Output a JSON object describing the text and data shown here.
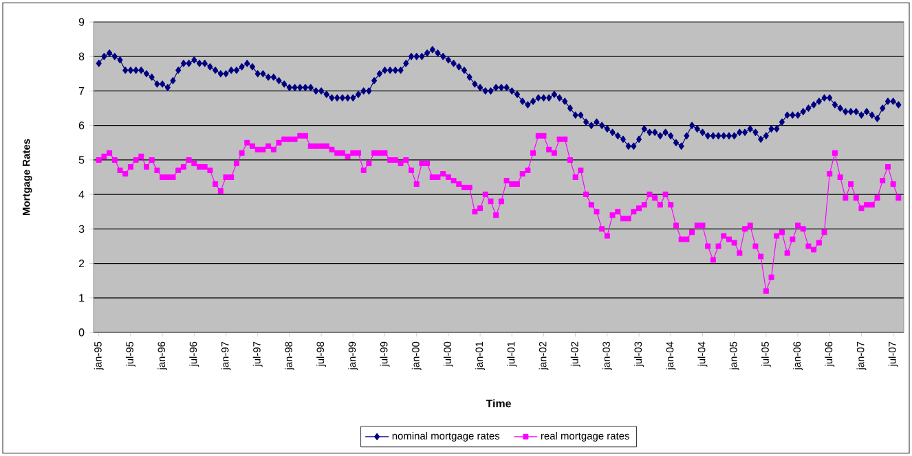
{
  "chart_data": {
    "type": "line",
    "xlabel": "Time",
    "ylabel": "Mortgage Rates",
    "categories": [
      "jan-95",
      null,
      null,
      null,
      null,
      null,
      "jul-95",
      null,
      null,
      null,
      null,
      null,
      "jan-96",
      null,
      null,
      null,
      null,
      null,
      "jul-96",
      null,
      null,
      null,
      null,
      null,
      "jan-97",
      null,
      null,
      null,
      null,
      null,
      "jul-97",
      null,
      null,
      null,
      null,
      null,
      "jan-98",
      null,
      null,
      null,
      null,
      null,
      "jul-98",
      null,
      null,
      null,
      null,
      null,
      "jan-99",
      null,
      null,
      null,
      null,
      null,
      "jul-99",
      null,
      null,
      null,
      null,
      null,
      "jan-00",
      null,
      null,
      null,
      null,
      null,
      "jul-00",
      null,
      null,
      null,
      null,
      null,
      "jan-01",
      null,
      null,
      null,
      null,
      null,
      "jul-01",
      null,
      null,
      null,
      null,
      null,
      "jan-02",
      null,
      null,
      null,
      null,
      null,
      "jul-02",
      null,
      null,
      null,
      null,
      null,
      "jan-03",
      null,
      null,
      null,
      null,
      null,
      "jul-03",
      null,
      null,
      null,
      null,
      null,
      "jan-04",
      null,
      null,
      null,
      null,
      null,
      "jul-04",
      null,
      null,
      null,
      null,
      null,
      "jan-05",
      null,
      null,
      null,
      null,
      null,
      "jul-05",
      null,
      null,
      null,
      null,
      null,
      "jan-06",
      null,
      null,
      null,
      null,
      null,
      "jul-06",
      null,
      null,
      null,
      null,
      null,
      "jan-07",
      null,
      null,
      null,
      null,
      null,
      "jul-07",
      null
    ],
    "series": [
      {
        "name": "nominal mortgage rates",
        "color": "#000080",
        "marker": "diamond",
        "values": [
          7.8,
          8.0,
          8.1,
          8.0,
          7.9,
          7.6,
          7.6,
          7.6,
          7.6,
          7.5,
          7.4,
          7.2,
          7.2,
          7.1,
          7.3,
          7.6,
          7.8,
          7.8,
          7.9,
          7.8,
          7.8,
          7.7,
          7.6,
          7.5,
          7.5,
          7.6,
          7.6,
          7.7,
          7.8,
          7.7,
          7.5,
          7.5,
          7.4,
          7.4,
          7.3,
          7.2,
          7.1,
          7.1,
          7.1,
          7.1,
          7.1,
          7.0,
          7.0,
          6.9,
          6.8,
          6.8,
          6.8,
          6.8,
          6.8,
          6.9,
          7.0,
          7.0,
          7.3,
          7.5,
          7.6,
          7.6,
          7.6,
          7.6,
          7.8,
          8.0,
          8.0,
          8.0,
          8.1,
          8.2,
          8.1,
          8.0,
          7.9,
          7.8,
          7.7,
          7.6,
          7.4,
          7.2,
          7.1,
          7.0,
          7.0,
          7.1,
          7.1,
          7.1,
          7.0,
          6.9,
          6.7,
          6.6,
          6.7,
          6.8,
          6.8,
          6.8,
          6.9,
          6.8,
          6.7,
          6.5,
          6.3,
          6.3,
          6.1,
          6.0,
          6.1,
          6.0,
          5.9,
          5.8,
          5.7,
          5.6,
          5.4,
          5.4,
          5.6,
          5.9,
          5.8,
          5.8,
          5.7,
          5.8,
          5.7,
          5.5,
          5.4,
          5.7,
          6.0,
          5.9,
          5.8,
          5.7,
          5.7,
          5.7,
          5.7,
          5.7,
          5.7,
          5.8,
          5.8,
          5.9,
          5.8,
          5.6,
          5.7,
          5.9,
          5.9,
          6.1,
          6.3,
          6.3,
          6.3,
          6.4,
          6.5,
          6.6,
          6.7,
          6.8,
          6.8,
          6.6,
          6.5,
          6.4,
          6.4,
          6.4,
          6.3,
          6.4,
          6.3,
          6.2,
          6.5,
          6.7,
          6.7,
          6.6
        ]
      },
      {
        "name": "real mortgage rates",
        "color": "#ff00ff",
        "marker": "square",
        "values": [
          5.0,
          5.1,
          5.2,
          5.0,
          4.7,
          4.6,
          4.8,
          5.0,
          5.1,
          4.8,
          5.0,
          4.7,
          4.5,
          4.5,
          4.5,
          4.7,
          4.8,
          5.0,
          4.9,
          4.8,
          4.8,
          4.7,
          4.3,
          4.1,
          4.5,
          4.5,
          4.9,
          5.2,
          5.5,
          5.4,
          5.3,
          5.3,
          5.4,
          5.3,
          5.5,
          5.6,
          5.6,
          5.6,
          5.7,
          5.7,
          5.4,
          5.4,
          5.4,
          5.4,
          5.3,
          5.2,
          5.2,
          5.1,
          5.2,
          5.2,
          4.7,
          4.9,
          5.2,
          5.2,
          5.2,
          5.0,
          5.0,
          4.9,
          5.0,
          4.7,
          4.3,
          4.9,
          4.9,
          4.5,
          4.5,
          4.6,
          4.5,
          4.4,
          4.3,
          4.2,
          4.2,
          3.5,
          3.6,
          4.0,
          3.8,
          3.4,
          3.8,
          4.4,
          4.3,
          4.3,
          4.6,
          4.7,
          5.2,
          5.7,
          5.7,
          5.3,
          5.2,
          5.6,
          5.6,
          5.0,
          4.5,
          4.7,
          4.0,
          3.7,
          3.5,
          3.0,
          2.8,
          3.4,
          3.5,
          3.3,
          3.3,
          3.5,
          3.6,
          3.7,
          4.0,
          3.9,
          3.7,
          4.0,
          3.7,
          3.1,
          2.7,
          2.7,
          2.9,
          3.1,
          3.1,
          2.5,
          2.1,
          2.5,
          2.8,
          2.7,
          2.6,
          2.3,
          3.0,
          3.1,
          2.5,
          2.2,
          1.2,
          1.6,
          2.8,
          2.9,
          2.3,
          2.7,
          3.1,
          3.0,
          2.5,
          2.4,
          2.6,
          2.9,
          4.6,
          5.2,
          4.5,
          3.9,
          4.3,
          3.9,
          3.6,
          3.7,
          3.7,
          3.9,
          4.4,
          4.8,
          4.3,
          3.9
        ]
      }
    ],
    "ylim": [
      0,
      9
    ],
    "yticks": [
      0,
      1,
      2,
      3,
      4,
      5,
      6,
      7,
      8,
      9
    ],
    "grid": "y",
    "legend": "bottom"
  }
}
